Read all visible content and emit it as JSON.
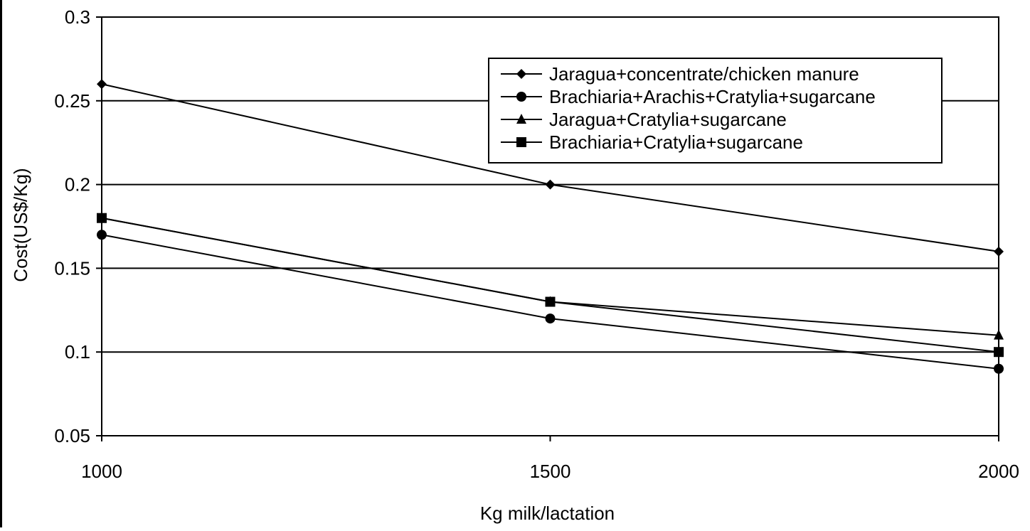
{
  "chart_data": {
    "type": "line",
    "title": "",
    "xlabel": "Kg milk/lactation",
    "ylabel": "Cost(US$/Kg)",
    "x": [
      1000,
      1500,
      2000
    ],
    "x_tick_labels": [
      "1000",
      "1500",
      "2000"
    ],
    "xlim": [
      1000,
      2000
    ],
    "ylim": [
      0.05,
      0.3
    ],
    "y_ticks": [
      0.05,
      0.1,
      0.15,
      0.2,
      0.25,
      0.3
    ],
    "y_tick_labels": [
      "0.05",
      "0.1",
      "0.15",
      "0.2",
      "0.25",
      "0.3"
    ],
    "grid": "horizontal",
    "legend_position": "top-right",
    "series": [
      {
        "name": "Jaragua+concentrate/chicken manure",
        "marker": "diamond",
        "values": [
          0.26,
          0.2,
          0.16
        ]
      },
      {
        "name": "Brachiaria+Arachis+Cratylia+sugarcane",
        "marker": "circle",
        "values": [
          0.17,
          0.12,
          0.09
        ]
      },
      {
        "name": "Jaragua+Cratylia+sugarcane",
        "marker": "triangle",
        "values": [
          0.18,
          0.13,
          0.11
        ]
      },
      {
        "name": "Brachiaria+Cratylia+sugarcane",
        "marker": "square",
        "values": [
          0.18,
          0.13,
          0.1
        ]
      }
    ],
    "colors": {
      "line": "#000000",
      "grid": "#000000",
      "background": "#ffffff"
    }
  }
}
